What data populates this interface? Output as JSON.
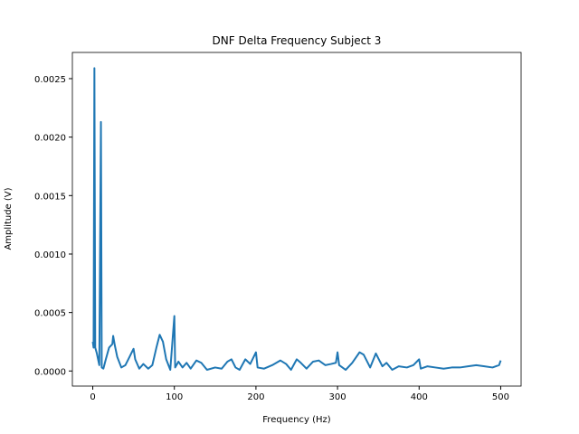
{
  "chart_data": {
    "type": "line",
    "title": "DNF Delta Frequency Subject 3",
    "x_label": "Frequency (Hz)",
    "y_label": "Amplitude (V)",
    "x": [
      0,
      1,
      2,
      3,
      5,
      8,
      10,
      11,
      13,
      16,
      20,
      24,
      25,
      27,
      30,
      35,
      40,
      45,
      50,
      52,
      57,
      62,
      68,
      73,
      78,
      82,
      86,
      90,
      95,
      100,
      101,
      105,
      110,
      115,
      120,
      127,
      133,
      140,
      150,
      158,
      165,
      170,
      175,
      180,
      187,
      193,
      200,
      202,
      210,
      220,
      230,
      237,
      243,
      250,
      255,
      262,
      270,
      277,
      285,
      292,
      298,
      300,
      302,
      310,
      318,
      327,
      332,
      340,
      347,
      355,
      360,
      367,
      375,
      385,
      393,
      400,
      402,
      410,
      420,
      430,
      440,
      450,
      460,
      470,
      480,
      490,
      498,
      500
    ],
    "series": [
      {
        "name": "amplitude",
        "color": "#1f77b4",
        "values": [
          0.00025,
          0.0002,
          0.00259,
          0.0002,
          0.00015,
          5e-05,
          0.00213,
          3e-05,
          2e-05,
          0.0001,
          0.0002,
          0.00023,
          0.0003,
          0.00022,
          0.00012,
          3e-05,
          5e-05,
          0.00012,
          0.00019,
          0.0001,
          2e-05,
          6e-05,
          2e-05,
          5e-05,
          0.0002,
          0.00031,
          0.00025,
          0.0001,
          1e-05,
          0.00047,
          3e-05,
          8e-05,
          3e-05,
          7e-05,
          2e-05,
          9e-05,
          7e-05,
          1e-05,
          3e-05,
          2e-05,
          8e-05,
          0.0001,
          3e-05,
          1e-05,
          0.0001,
          6e-05,
          0.00016,
          3e-05,
          2e-05,
          5e-05,
          9e-05,
          6e-05,
          1e-05,
          0.0001,
          7e-05,
          2e-05,
          8e-05,
          9e-05,
          5e-05,
          6e-05,
          7e-05,
          0.00016,
          5e-05,
          1e-05,
          7e-05,
          0.00016,
          0.00014,
          3e-05,
          0.00015,
          4e-05,
          7e-05,
          1e-05,
          4e-05,
          3e-05,
          5e-05,
          0.0001,
          2e-05,
          4e-05,
          3e-05,
          2e-05,
          3e-05,
          3e-05,
          4e-05,
          5e-05,
          4e-05,
          3e-05,
          5e-05,
          9e-05
        ]
      }
    ],
    "xlim": [
      -25,
      525
    ],
    "xticks": [
      0,
      100,
      200,
      300,
      400,
      500
    ],
    "ylim": [
      -0.000129,
      0.002724
    ],
    "yticks": [
      {
        "value": 0,
        "label": "0.0000"
      },
      {
        "value": 0.0005,
        "label": "0.0005"
      },
      {
        "value": 0.001,
        "label": "0.0010"
      },
      {
        "value": 0.0015,
        "label": "0.0015"
      },
      {
        "value": 0.002,
        "label": "0.0020"
      },
      {
        "value": 0.0025,
        "label": "0.0025"
      }
    ],
    "grid": false
  }
}
